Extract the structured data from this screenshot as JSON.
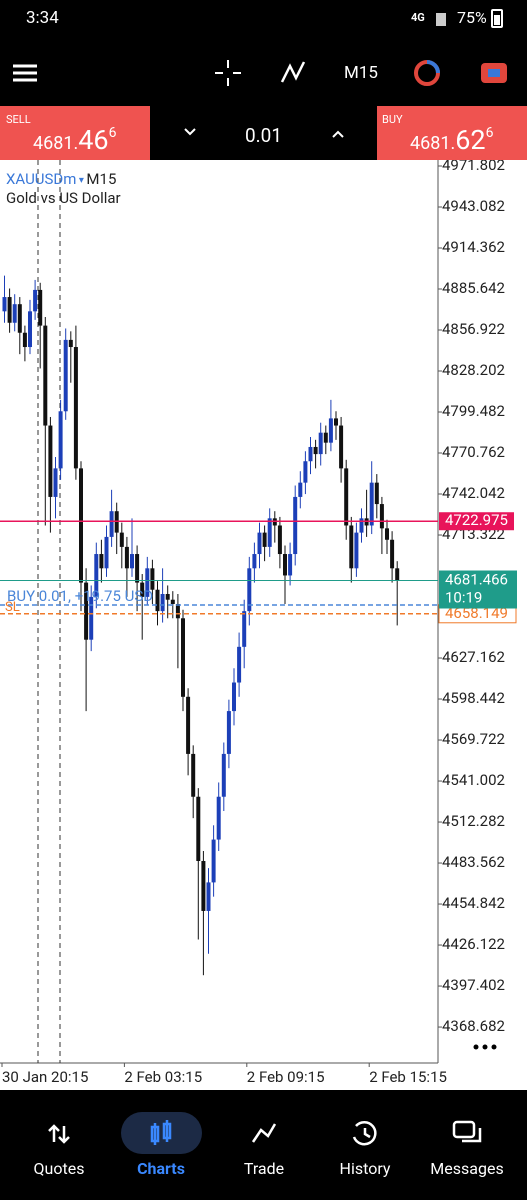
{
  "status_bar": {
    "time": "3:34",
    "network": "4G",
    "battery": "75%"
  },
  "toolbar": {
    "timeframe": "M15"
  },
  "quote_bar": {
    "sell": {
      "label": "SELL",
      "main": "4681.",
      "big": "46",
      "sup": "6"
    },
    "lot": "0.01",
    "buy": {
      "label": "BUY",
      "main": "4681.",
      "big": "62",
      "sup": "6"
    }
  },
  "chart_data": {
    "type": "candlestick",
    "symbol": "XAUUSDm",
    "timeframe": "M15",
    "description": "Gold vs US Dollar",
    "bull_color": "#1c3fb8",
    "bear_color": "#111111",
    "ylim": [
      4343.5,
      4977.4
    ],
    "yticks": [
      4971.802,
      4943.082,
      4914.362,
      4885.642,
      4856.922,
      4828.202,
      4799.482,
      4770.762,
      4742.042,
      4713.322,
      4627.162,
      4598.442,
      4569.722,
      4541.002,
      4512.282,
      4483.562,
      4454.842,
      4426.122,
      4397.402,
      4368.682
    ],
    "xticks": [
      {
        "value": 0,
        "label": "30 Jan 20:15"
      },
      {
        "value": 24,
        "label": "2 Feb 03:15"
      },
      {
        "value": 48,
        "label": "2 Feb 09:15"
      },
      {
        "value": 72,
        "label": "2 Feb 15:15"
      }
    ],
    "ohlc": [
      [
        4870,
        4895,
        4862,
        4880
      ],
      [
        4880,
        4886,
        4855,
        4862
      ],
      [
        4862,
        4882,
        4856,
        4875
      ],
      [
        4875,
        4880,
        4840,
        4855
      ],
      [
        4855,
        4860,
        4835,
        4845
      ],
      [
        4845,
        4878,
        4840,
        4870
      ],
      [
        4870,
        4892,
        4864,
        4885
      ],
      [
        4885,
        4890,
        4830,
        4860
      ],
      [
        4860,
        4866,
        4720,
        4790
      ],
      [
        4790,
        4796,
        4715,
        4740
      ],
      [
        4740,
        4768,
        4725,
        4760
      ],
      [
        4760,
        4808,
        4752,
        4800
      ],
      [
        4800,
        4858,
        4794,
        4850
      ],
      [
        4850,
        4856,
        4820,
        4845
      ],
      [
        4845,
        4860,
        4752,
        4760
      ],
      [
        4760,
        4765,
        4660,
        4680
      ],
      [
        4680,
        4690,
        4590,
        4640
      ],
      [
        4640,
        4678,
        4632,
        4670
      ],
      [
        4670,
        4708,
        4662,
        4700
      ],
      [
        4700,
        4710,
        4680,
        4690
      ],
      [
        4690,
        4720,
        4684,
        4712
      ],
      [
        4712,
        4745,
        4705,
        4730
      ],
      [
        4730,
        4736,
        4700,
        4715
      ],
      [
        4715,
        4722,
        4690,
        4705
      ],
      [
        4705,
        4712,
        4670,
        4690
      ],
      [
        4690,
        4725,
        4684,
        4700
      ],
      [
        4700,
        4706,
        4660,
        4680
      ],
      [
        4680,
        4686,
        4640,
        4670
      ],
      [
        4670,
        4698,
        4664,
        4690
      ],
      [
        4690,
        4696,
        4665,
        4675
      ],
      [
        4675,
        4681,
        4650,
        4660
      ],
      [
        4660,
        4690,
        4652,
        4672
      ],
      [
        4672,
        4678,
        4655,
        4668
      ],
      [
        4668,
        4674,
        4655,
        4665
      ],
      [
        4665,
        4672,
        4620,
        4655
      ],
      [
        4655,
        4661,
        4590,
        4600
      ],
      [
        4600,
        4606,
        4545,
        4560
      ],
      [
        4560,
        4566,
        4515,
        4530
      ],
      [
        4530,
        4536,
        4430,
        4485
      ],
      [
        4485,
        4492,
        4405,
        4450
      ],
      [
        4450,
        4480,
        4420,
        4470
      ],
      [
        4470,
        4510,
        4460,
        4500
      ],
      [
        4500,
        4540,
        4492,
        4530
      ],
      [
        4530,
        4568,
        4520,
        4560
      ],
      [
        4560,
        4598,
        4550,
        4590
      ],
      [
        4590,
        4620,
        4580,
        4610
      ],
      [
        4610,
        4645,
        4600,
        4635
      ],
      [
        4635,
        4668,
        4620,
        4660
      ],
      [
        4660,
        4698,
        4650,
        4690
      ],
      [
        4690,
        4708,
        4680,
        4700
      ],
      [
        4700,
        4722,
        4690,
        4715
      ],
      [
        4715,
        4720,
        4695,
        4705
      ],
      [
        4705,
        4732,
        4698,
        4725
      ],
      [
        4725,
        4730,
        4708,
        4720
      ],
      [
        4720,
        4726,
        4690,
        4700
      ],
      [
        4700,
        4706,
        4665,
        4685
      ],
      [
        4685,
        4708,
        4678,
        4700
      ],
      [
        4700,
        4748,
        4692,
        4740
      ],
      [
        4740,
        4758,
        4732,
        4750
      ],
      [
        4750,
        4772,
        4742,
        4765
      ],
      [
        4765,
        4782,
        4756,
        4775
      ],
      [
        4775,
        4780,
        4760,
        4770
      ],
      [
        4770,
        4792,
        4762,
        4785
      ],
      [
        4785,
        4790,
        4770,
        4778
      ],
      [
        4778,
        4808,
        4772,
        4795
      ],
      [
        4795,
        4800,
        4780,
        4790
      ],
      [
        4790,
        4796,
        4750,
        4760
      ],
      [
        4760,
        4766,
        4710,
        4720
      ],
      [
        4720,
        4726,
        4680,
        4690
      ],
      [
        4690,
        4722,
        4684,
        4715
      ],
      [
        4715,
        4732,
        4708,
        4725
      ],
      [
        4725,
        4745,
        4712,
        4720
      ],
      [
        4720,
        4765,
        4714,
        4750
      ],
      [
        4750,
        4756,
        4725,
        4735
      ],
      [
        4735,
        4740,
        4700,
        4718
      ],
      [
        4718,
        4724,
        4700,
        4710
      ],
      [
        4710,
        4716,
        4680,
        4690
      ],
      [
        4690,
        4695,
        4650,
        4681.466
      ]
    ],
    "alert_line": {
      "value": 4722.975,
      "color": "#e8145a"
    },
    "current_price": {
      "value": 4681.466,
      "timer": "10:19",
      "color": "#1f9c8a"
    },
    "position": {
      "value": 4664.3,
      "label": "BUY 0.01, +19.75 USD",
      "color": "#4a86d8"
    },
    "stop_loss": {
      "value": 4658.149,
      "label": "SL",
      "color": "#f07a2a"
    }
  },
  "nav": [
    "Quotes",
    "Charts",
    "Trade",
    "History",
    "Messages"
  ]
}
